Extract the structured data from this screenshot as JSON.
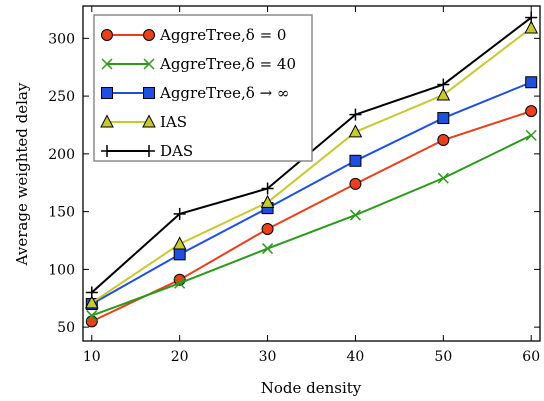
{
  "chart_data": {
    "type": "line",
    "title": "",
    "xlabel": "Node density",
    "ylabel": "Average weighted delay",
    "xlim": [
      9,
      61
    ],
    "ylim": [
      38,
      328
    ],
    "xticks": [
      10,
      20,
      30,
      40,
      50,
      60
    ],
    "yticks": [
      50,
      100,
      150,
      200,
      250,
      300
    ],
    "grid": false,
    "legend_position": "top-left",
    "x": [
      10,
      20,
      30,
      40,
      50,
      60
    ],
    "series": [
      {
        "name": "AggreTree,δ = 0",
        "color": "#e8401c",
        "marker": "circle",
        "values": [
          55,
          91,
          135,
          174,
          212,
          237
        ]
      },
      {
        "name": "AggreTree,δ = 40",
        "color": "#2a9a1a",
        "marker": "x",
        "values": [
          60,
          88,
          118,
          147,
          179,
          216
        ]
      },
      {
        "name": "AggreTree,δ → ∞",
        "color": "#1f4fe0",
        "marker": "square",
        "values": [
          70,
          113,
          153,
          194,
          231,
          262
        ]
      },
      {
        "name": "IAS",
        "color": "#c8c832",
        "marker": "triangle",
        "values": [
          71,
          122,
          158,
          219,
          251,
          309
        ]
      },
      {
        "name": "DAS",
        "color": "#000000",
        "marker": "plus",
        "values": [
          80,
          148,
          170,
          234,
          260,
          318
        ]
      }
    ]
  }
}
